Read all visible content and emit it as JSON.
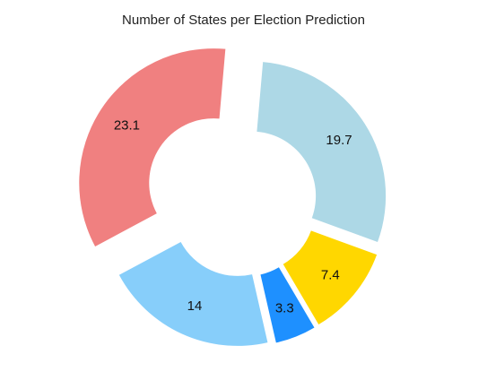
{
  "chart_data": {
    "type": "pie",
    "title": "Number of States per Election Prediction",
    "style": "donut",
    "exploded": true,
    "slices": [
      {
        "value": 19.7,
        "label": "19.7",
        "color": "#ADD8E6"
      },
      {
        "value": 7.4,
        "label": "7.4",
        "color": "#FFD700"
      },
      {
        "value": 3.3,
        "label": "3.3",
        "color": "#1E90FF"
      },
      {
        "value": 14,
        "label": "14",
        "color": "#87CEFA"
      },
      {
        "value": 23.1,
        "label": "23.1",
        "color": "#F08080"
      }
    ],
    "legend": "none"
  }
}
